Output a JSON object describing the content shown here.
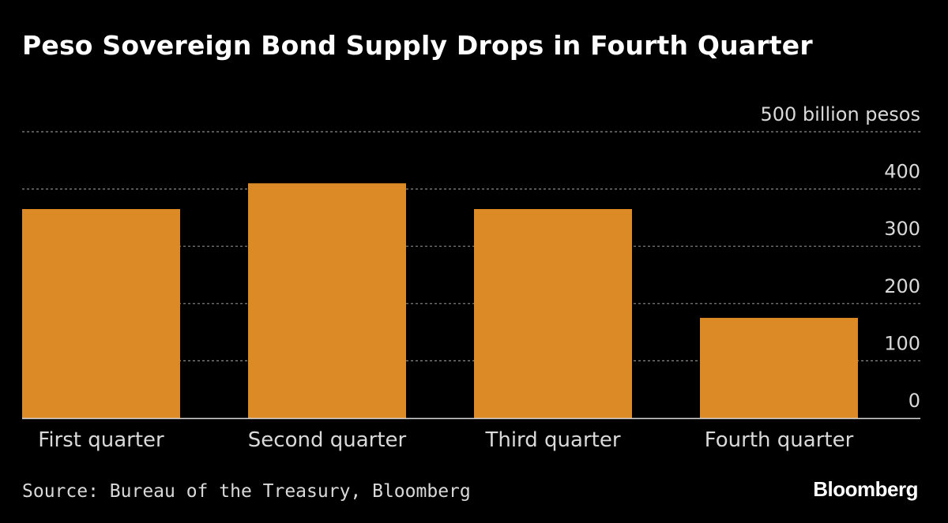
{
  "chart_data": {
    "type": "bar",
    "title": "Peso Sovereign Bond Supply Drops in Fourth Quarter",
    "categories": [
      "First quarter",
      "Second quarter",
      "Third quarter",
      "Fourth quarter"
    ],
    "values": [
      365,
      410,
      365,
      175
    ],
    "ylabel": "",
    "y_unit_label": "500 billion pesos",
    "ylim": [
      0,
      500
    ],
    "yticks": [
      0,
      100,
      200,
      300,
      400,
      500
    ],
    "ytick_labels": [
      "0",
      "100",
      "200",
      "300",
      "400",
      "500 billion pesos"
    ],
    "y_axis_side": "right",
    "grid": true,
    "bar_color": "#dc8a25",
    "source": "Source: Bureau of the Treasury, Bloomberg",
    "logo": "Bloomberg"
  }
}
